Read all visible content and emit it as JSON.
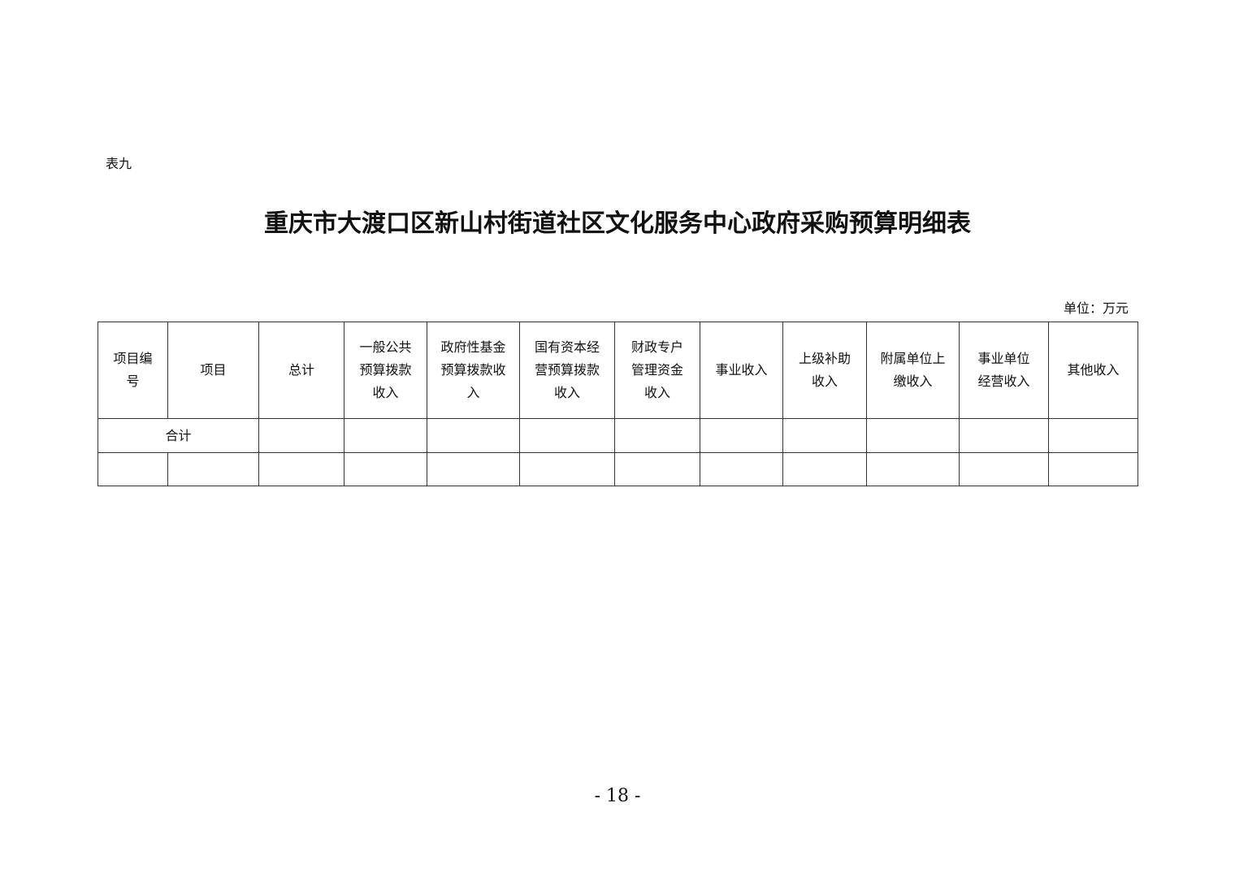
{
  "table_label": "表九",
  "title": "重庆市大渡口区新山村街道社区文化服务中心政府采购预算明细表",
  "unit": "单位：万元",
  "table": {
    "headers": [
      "项目编\n号",
      "项目",
      "总计",
      "一般公共\n预算拨款\n收入",
      "政府性基金\n预算拨款收\n入",
      "国有资本经\n营预算拨款\n收入",
      "财政专户\n管理资金\n收入",
      "事业收入",
      "上级补助\n收入",
      "附属单位上\n缴收入",
      "事业单位\n经营收入",
      "其他收入"
    ],
    "total_row_label": "合计"
  },
  "page_number": "- 18 -"
}
